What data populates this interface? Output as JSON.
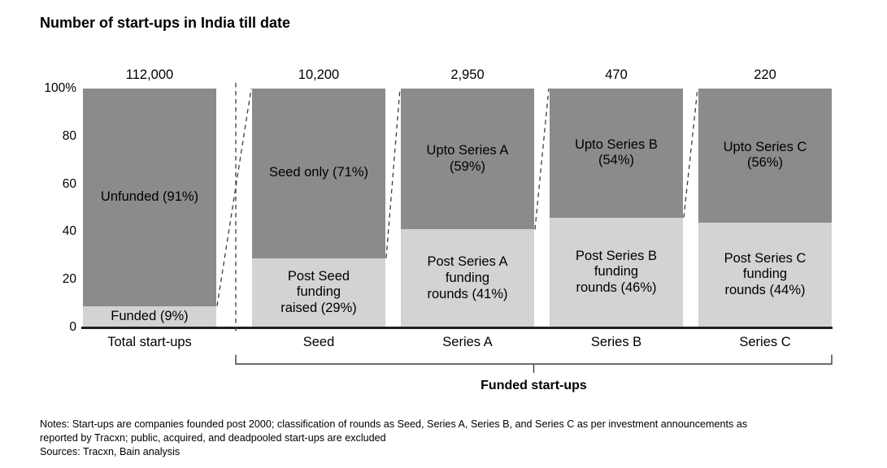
{
  "title": "Number of start-ups in India till date",
  "chart_data": {
    "type": "bar",
    "subtype": "100pct-stacked-vertical",
    "title": "Number of start-ups in India till date",
    "ylim": [
      0,
      100
    ],
    "ytick_labels": [
      "100%",
      "80",
      "60",
      "40",
      "20",
      "0"
    ],
    "ytick_values": [
      100,
      80,
      60,
      40,
      20,
      0
    ],
    "grid": false,
    "categories": [
      "Total start-ups",
      "Seed",
      "Series A",
      "Series B",
      "Series C"
    ],
    "totals_above_bars": [
      "112,000",
      "10,200",
      "2,950",
      "470",
      "220"
    ],
    "series": [
      {
        "name": "upper-dark-segment",
        "color": "#8b8b8b",
        "values": [
          91,
          71,
          59,
          54,
          56
        ],
        "labels": [
          "Unfunded (91%)",
          "Seed only (71%)",
          "Upto Series A\n(59%)",
          "Upto Series B\n(54%)",
          "Upto Series C\n(56%)"
        ]
      },
      {
        "name": "lower-light-segment",
        "color": "#d3d3d3",
        "values": [
          9,
          29,
          41,
          46,
          44
        ],
        "labels": [
          "Funded (9%)",
          "Post Seed\nfunding\nraised (29%)",
          "Post Series A\nfunding\nrounds (41%)",
          "Post Series B\nfunding\nrounds (46%)",
          "Post Series C\nfunding\nrounds (44%)"
        ]
      }
    ],
    "connectors": "dashed lines link each bar's funded segment to the full height of the next bar; dashed vertical divider separates Total start-ups from funded bars",
    "group_label": "Funded start-ups",
    "group_span": [
      "Seed",
      "Series C"
    ],
    "colors": {
      "dark": "#8b8b8b",
      "light": "#d3d3d3",
      "axis": "#1f1f1f",
      "dashed": "#3c3c3c"
    }
  },
  "notes": {
    "lines": [
      "Notes: Start-ups are companies founded post 2000; classification of rounds as Seed, Series A, Series B, and Series C as per investment announcements as",
      "reported by Tracxn; public, acquired, and deadpooled start-ups are excluded",
      "Sources: Tracxn, Bain analysis"
    ]
  }
}
